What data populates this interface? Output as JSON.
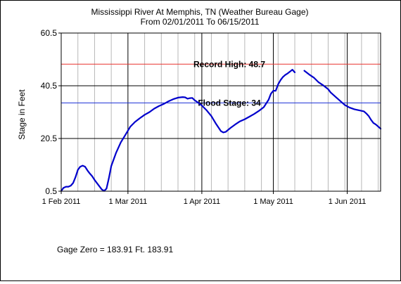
{
  "title": "Mississippi River At Memphis, TN (Weather Bureau Gage)",
  "subtitle": "From 02/01/2011 To 06/15/2011",
  "footnote": "Gage Zero = 183.91 Ft. 183.91",
  "chart_data": {
    "type": "line",
    "title": "Mississippi River At Memphis, TN (Weather Bureau Gage)",
    "subtitle": "From 02/01/2011 To 06/15/2011",
    "xlabel": "",
    "ylabel": "Stage in Feet",
    "xlim": [
      "2011-02-01",
      "2011-06-15"
    ],
    "ylim": [
      0.5,
      60.5
    ],
    "yticks": [
      0.5,
      20.5,
      40.5,
      60.5
    ],
    "ytick_labels": [
      "0.5",
      "20.5",
      "40.5",
      "60.5"
    ],
    "xticks": [
      "2011-02-01",
      "2011-03-01",
      "2011-04-01",
      "2011-05-01",
      "2011-06-01"
    ],
    "xtick_labels": [
      "1 Feb 2011",
      "1 Mar 2011",
      "1 Apr 2011",
      "1 May 2011",
      "1 Jun 2011"
    ],
    "grid": true,
    "reference_lines": [
      {
        "label": "Record High: 48.7",
        "value": 48.7,
        "color": "#e8322e"
      },
      {
        "label": "Flood Stage: 34",
        "value": 34,
        "color": "#1a2fd6"
      }
    ],
    "series": [
      {
        "name": "",
        "color": "#0000cc",
        "points": [
          [
            "2011-02-01",
            0.6
          ],
          [
            "2011-02-02",
            1.8
          ],
          [
            "2011-02-03",
            2.2
          ],
          [
            "2011-02-04",
            2.2
          ],
          [
            "2011-02-05",
            2.6
          ],
          [
            "2011-02-06",
            3.6
          ],
          [
            "2011-02-07",
            5.8
          ],
          [
            "2011-02-08",
            8.6
          ],
          [
            "2011-02-09",
            9.8
          ],
          [
            "2011-02-10",
            10.2
          ],
          [
            "2011-02-11",
            9.8
          ],
          [
            "2011-02-12",
            8.4
          ],
          [
            "2011-02-13",
            7.2
          ],
          [
            "2011-02-14",
            6.2
          ],
          [
            "2011-02-15",
            4.8
          ],
          [
            "2011-02-16",
            3.6
          ],
          [
            "2011-02-17",
            2.4
          ],
          [
            "2011-02-18",
            1.2
          ],
          [
            "2011-02-19",
            0.6
          ],
          [
            "2011-02-20",
            1.5
          ],
          [
            "2011-02-21",
            5.5
          ],
          [
            "2011-02-22",
            10.0
          ],
          [
            "2011-02-24",
            15.0
          ],
          [
            "2011-02-26",
            19.0
          ],
          [
            "2011-02-28",
            22.0
          ],
          [
            "2011-03-02",
            25.0
          ],
          [
            "2011-03-04",
            26.8
          ],
          [
            "2011-03-06",
            28.2
          ],
          [
            "2011-03-08",
            29.5
          ],
          [
            "2011-03-10",
            30.5
          ],
          [
            "2011-03-12",
            31.8
          ],
          [
            "2011-03-14",
            32.8
          ],
          [
            "2011-03-16",
            33.6
          ],
          [
            "2011-03-18",
            34.6
          ],
          [
            "2011-03-20",
            35.4
          ],
          [
            "2011-03-22",
            36.0
          ],
          [
            "2011-03-24",
            36.2
          ],
          [
            "2011-03-25",
            36.1
          ],
          [
            "2011-03-26",
            35.6
          ],
          [
            "2011-03-27",
            35.8
          ],
          [
            "2011-03-28",
            35.9
          ],
          [
            "2011-03-29",
            35.0
          ],
          [
            "2011-03-30",
            34.4
          ],
          [
            "2011-04-01",
            33.0
          ],
          [
            "2011-04-03",
            31.2
          ],
          [
            "2011-04-05",
            29.0
          ],
          [
            "2011-04-07",
            26.0
          ],
          [
            "2011-04-09",
            23.3
          ],
          [
            "2011-04-10",
            22.8
          ],
          [
            "2011-04-11",
            23.0
          ],
          [
            "2011-04-13",
            24.5
          ],
          [
            "2011-04-15",
            25.8
          ],
          [
            "2011-04-17",
            27.0
          ],
          [
            "2011-04-19",
            27.8
          ],
          [
            "2011-04-21",
            28.8
          ],
          [
            "2011-04-23",
            29.8
          ],
          [
            "2011-04-25",
            31.0
          ],
          [
            "2011-04-27",
            32.4
          ],
          [
            "2011-04-28",
            33.8
          ],
          [
            "2011-04-29",
            35.2
          ],
          [
            "2011-04-30",
            37.5
          ],
          [
            "2011-05-01",
            38.6
          ],
          [
            "2011-05-02",
            38.6
          ],
          [
            "2011-05-03",
            41.0
          ],
          [
            "2011-05-04",
            42.6
          ],
          [
            "2011-05-05",
            43.8
          ],
          [
            "2011-05-06",
            44.6
          ],
          [
            "2011-05-07",
            45.2
          ],
          [
            "2011-05-08",
            45.9
          ],
          [
            "2011-05-09",
            46.6
          ],
          [
            "2011-05-10",
            45.6
          ],
          null,
          [
            "2011-05-14",
            46.2
          ],
          [
            "2011-05-16",
            44.8
          ],
          [
            "2011-05-18",
            43.6
          ],
          [
            "2011-05-20",
            41.8
          ],
          [
            "2011-05-22",
            40.6
          ],
          [
            "2011-05-24",
            39.2
          ],
          [
            "2011-05-25",
            38.0
          ],
          [
            "2011-05-27",
            36.4
          ],
          [
            "2011-05-29",
            34.8
          ],
          [
            "2011-05-31",
            33.2
          ],
          [
            "2011-06-02",
            32.2
          ],
          [
            "2011-06-04",
            31.6
          ],
          [
            "2011-06-06",
            31.2
          ],
          [
            "2011-06-08",
            30.8
          ],
          [
            "2011-06-09",
            30.0
          ],
          [
            "2011-06-10",
            29.0
          ],
          [
            "2011-06-11",
            27.6
          ],
          [
            "2011-06-12",
            26.4
          ],
          [
            "2011-06-13",
            25.8
          ],
          [
            "2011-06-14",
            25.0
          ],
          [
            "2011-06-15",
            24.2
          ]
        ]
      }
    ]
  }
}
